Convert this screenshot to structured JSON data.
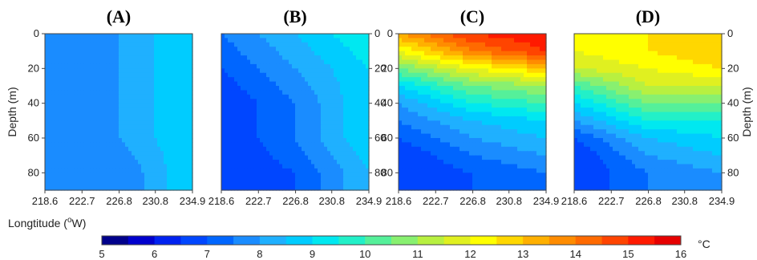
{
  "chart_data": {
    "type": "heatmap",
    "x_axis": {
      "label": "Longtitude (°W)",
      "label_main": "Longtitude (",
      "label_sup": "o",
      "label_end": "W)",
      "ticks": [
        "218.6",
        "222.7",
        "226.8",
        "230.8",
        "234.9"
      ],
      "range": [
        218.6,
        234.9
      ]
    },
    "y_axis": {
      "label": "Depth (m)",
      "ticks": [
        "0",
        "20",
        "40",
        "60",
        "80"
      ],
      "range": [
        0,
        90
      ],
      "inverted": true
    },
    "colorbar": {
      "unit": "°C",
      "ticks": [
        "5",
        "6",
        "7",
        "8",
        "9",
        "10",
        "11",
        "12",
        "13",
        "14",
        "15",
        "16"
      ],
      "range": [
        5,
        16
      ],
      "step": 0.5
    },
    "panels": [
      {
        "title": "(A)",
        "temperature_profile": {
          "depth": [
            0,
            20,
            40,
            60,
            80,
            90
          ],
          "west": [
            7.5,
            7.5,
            7.5,
            7.5,
            7.5,
            7.5
          ],
          "center": [
            8.0,
            8.0,
            8.0,
            8.0,
            7.5,
            7.5
          ],
          "east": [
            9.0,
            9.0,
            9.0,
            9.0,
            9.0,
            9.0
          ]
        }
      },
      {
        "title": "(B)",
        "temperature_profile": {
          "depth": [
            0,
            20,
            40,
            60,
            80,
            90
          ],
          "west": [
            7.5,
            7.0,
            6.5,
            6.5,
            6.5,
            6.5
          ],
          "center": [
            8.5,
            8.0,
            7.5,
            7.5,
            7.0,
            7.0
          ],
          "east": [
            9.5,
            9.0,
            9.0,
            9.0,
            8.5,
            8.5
          ]
        }
      },
      {
        "title": "(C)",
        "temperature_profile": {
          "depth": [
            0,
            10,
            20,
            30,
            40,
            50,
            60,
            70,
            80,
            90
          ],
          "west": [
            13.5,
            12.0,
            10.5,
            9.0,
            8.0,
            7.5,
            7.0,
            6.5,
            6.5,
            6.5
          ],
          "center": [
            15.0,
            14.0,
            12.0,
            10.5,
            9.5,
            8.5,
            8.0,
            7.5,
            7.0,
            7.0
          ],
          "east": [
            15.5,
            15.0,
            13.0,
            11.0,
            10.0,
            9.0,
            8.5,
            8.0,
            7.5,
            7.5
          ]
        }
      },
      {
        "title": "(D)",
        "temperature_profile": {
          "depth": [
            0,
            10,
            20,
            30,
            40,
            50,
            60,
            70,
            80,
            90
          ],
          "west": [
            12.0,
            12.0,
            11.5,
            10.0,
            9.0,
            8.0,
            7.0,
            6.5,
            6.5,
            6.5
          ],
          "center": [
            12.5,
            12.5,
            12.0,
            11.5,
            10.5,
            9.5,
            8.5,
            8.0,
            7.5,
            7.5
          ],
          "east": [
            13.0,
            13.0,
            12.5,
            11.5,
            10.5,
            9.5,
            9.0,
            8.5,
            8.0,
            8.0
          ]
        }
      }
    ]
  },
  "colors": {
    "scale": [
      "#00008b",
      "#0000cd",
      "#0022f0",
      "#0046ff",
      "#0066ff",
      "#1a8cff",
      "#1fb0ff",
      "#00ccff",
      "#00e8f0",
      "#22f0c8",
      "#55f09a",
      "#88f070",
      "#b8f040",
      "#e0f020",
      "#ffff00",
      "#ffd700",
      "#ffb000",
      "#ff8c00",
      "#ff6a00",
      "#ff4400",
      "#ff1a00",
      "#e60000",
      "#c00000"
    ]
  }
}
